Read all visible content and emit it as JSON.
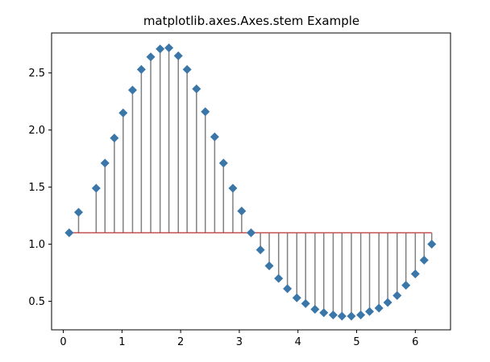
{
  "chart_data": {
    "type": "stem",
    "title": "matplotlib.axes.Axes.stem Example",
    "xlabel": "",
    "ylabel": "",
    "xlim": [
      -0.2,
      6.6
    ],
    "ylim": [
      0.25,
      2.85
    ],
    "baseline": 1.1,
    "x_ticks": [
      0,
      1,
      2,
      3,
      4,
      5,
      6
    ],
    "x_tick_labels": [
      "0",
      "1",
      "2",
      "3",
      "4",
      "5",
      "6"
    ],
    "y_ticks": [
      0.5,
      1.0,
      1.5,
      2.0,
      2.5
    ],
    "y_tick_labels": [
      "0.5",
      "1.0",
      "1.5",
      "2.0",
      "2.5"
    ],
    "grid": false,
    "legend": "none",
    "colors": {
      "marker": "#3a76a8",
      "stem": "#808080",
      "baseline": "#c0504d",
      "axes": "#000000",
      "background": "#ffffff"
    },
    "marker_shape": "diamond",
    "series": [
      {
        "x": [
          0.1,
          0.26,
          0.56,
          0.71,
          0.87,
          1.02,
          1.18,
          1.33,
          1.49,
          1.65,
          1.8,
          1.96,
          2.11,
          2.27,
          2.42,
          2.58,
          2.73,
          2.89,
          3.04,
          3.2,
          3.36,
          3.51,
          3.67,
          3.82,
          3.98,
          4.13,
          4.29,
          4.44,
          4.6,
          4.75,
          4.91,
          5.07,
          5.22,
          5.38,
          5.53,
          5.69,
          5.84,
          6.0,
          6.15,
          6.28
        ],
        "y": [
          1.1,
          1.28,
          1.49,
          1.71,
          1.93,
          2.15,
          2.35,
          2.53,
          2.64,
          2.71,
          2.72,
          2.65,
          2.53,
          2.36,
          2.16,
          1.94,
          1.71,
          1.49,
          1.29,
          1.1,
          0.95,
          0.81,
          0.7,
          0.61,
          0.53,
          0.48,
          0.43,
          0.4,
          0.38,
          0.37,
          0.37,
          0.38,
          0.41,
          0.44,
          0.49,
          0.55,
          0.64,
          0.74,
          0.86,
          1.0
        ]
      }
    ]
  }
}
